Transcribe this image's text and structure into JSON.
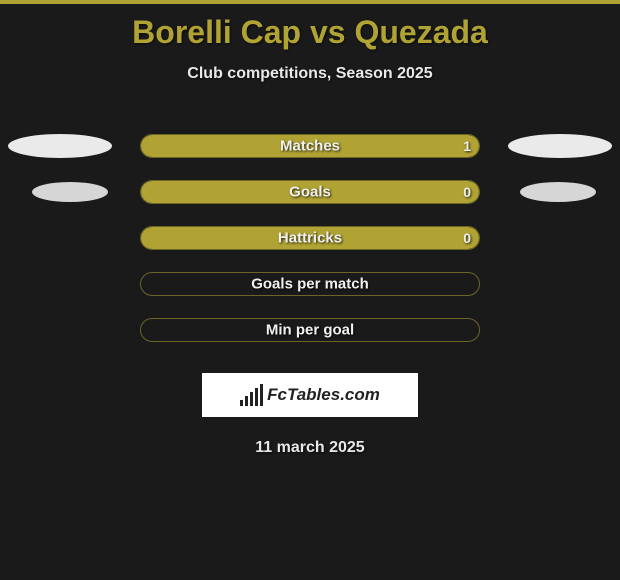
{
  "title": "Borelli Cap vs Quezada",
  "subtitle": "Club competitions, Season 2025",
  "date": "11 march 2025",
  "logo_text": "FcTables.com",
  "colors": {
    "accent": "#b0a334",
    "background": "#1a1a1a",
    "text_light": "#e8e8e8",
    "ellipse": "#eaeaea",
    "ellipse_small": "#d6d6d6",
    "logo_bg": "#ffffff",
    "logo_fg": "#222222"
  },
  "chart": {
    "type": "horizontal-comparison-bars",
    "track_width": 340,
    "track_height": 24,
    "border_radius": 12,
    "rows": [
      {
        "label": "Matches",
        "left_value": null,
        "right_value": "1",
        "fill_mode": "full",
        "left_pct": 0,
        "right_pct": 100,
        "show_left_ellipse": true,
        "show_right_ellipse": true,
        "ellipse_size": "large"
      },
      {
        "label": "Goals",
        "left_value": null,
        "right_value": "0",
        "fill_mode": "full",
        "left_pct": 0,
        "right_pct": 100,
        "show_left_ellipse": true,
        "show_right_ellipse": true,
        "ellipse_size": "small"
      },
      {
        "label": "Hattricks",
        "left_value": null,
        "right_value": "0",
        "fill_mode": "full",
        "left_pct": 0,
        "right_pct": 100,
        "show_left_ellipse": false,
        "show_right_ellipse": false
      },
      {
        "label": "Goals per match",
        "left_value": null,
        "right_value": null,
        "fill_mode": "none",
        "left_pct": 0,
        "right_pct": 0,
        "show_left_ellipse": false,
        "show_right_ellipse": false
      },
      {
        "label": "Min per goal",
        "left_value": null,
        "right_value": null,
        "fill_mode": "none",
        "left_pct": 0,
        "right_pct": 0,
        "show_left_ellipse": false,
        "show_right_ellipse": false
      }
    ]
  },
  "logo_bars_heights": [
    6,
    10,
    14,
    18,
    22
  ]
}
